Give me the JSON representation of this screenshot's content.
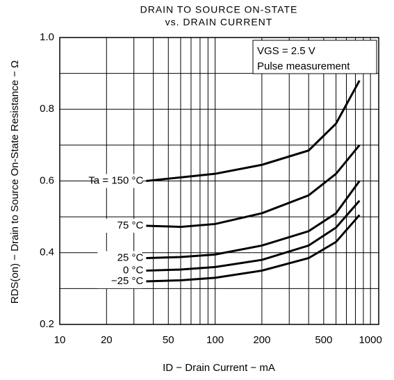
{
  "chart_data": {
    "type": "line",
    "title": [
      "DRAIN TO SOURCE ON-STATE",
      "vs. DRAIN CURRENT"
    ],
    "xlabel": "ID − Drain Current − mA",
    "ylabel": "RDS(on) − Drain to Source On-State Resistance − Ω",
    "annotations": [
      "VGS = 2.5 V",
      "Pulse measurement"
    ],
    "x": [
      36,
      60,
      100,
      200,
      400,
      600,
      850
    ],
    "series": [
      {
        "name": "Ta = 150 °C",
        "color": "#000000",
        "values": [
          0.6,
          0.61,
          0.62,
          0.645,
          0.685,
          0.76,
          0.88
        ]
      },
      {
        "name": "75 °C",
        "color": "#000000",
        "values": [
          0.475,
          0.472,
          0.48,
          0.51,
          0.56,
          0.62,
          0.7
        ]
      },
      {
        "name": "25 °C",
        "color": "#000000",
        "values": [
          0.385,
          0.388,
          0.395,
          0.42,
          0.46,
          0.51,
          0.6
        ]
      },
      {
        "name": "0 °C",
        "color": "#000000",
        "values": [
          0.35,
          0.353,
          0.36,
          0.38,
          0.42,
          0.47,
          0.545
        ]
      },
      {
        "name": "−25 °C",
        "color": "#000000",
        "values": [
          0.32,
          0.323,
          0.33,
          0.35,
          0.385,
          0.43,
          0.505
        ]
      }
    ],
    "xscale": "log",
    "xlim": [
      10,
      1130
    ],
    "xticks": [
      10,
      20,
      50,
      100,
      200,
      500,
      1000
    ],
    "xminor": [
      30,
      40,
      60,
      70,
      80,
      90,
      300,
      400,
      600,
      700,
      800,
      900
    ],
    "ylim": [
      0.2,
      1.0
    ],
    "yticks": [
      0.2,
      0.4,
      0.6,
      0.8,
      {
        "value": 1.0,
        "label": "1.0"
      }
    ],
    "yminor": [
      0.3,
      0.5,
      0.7,
      0.9
    ],
    "grid": true
  }
}
